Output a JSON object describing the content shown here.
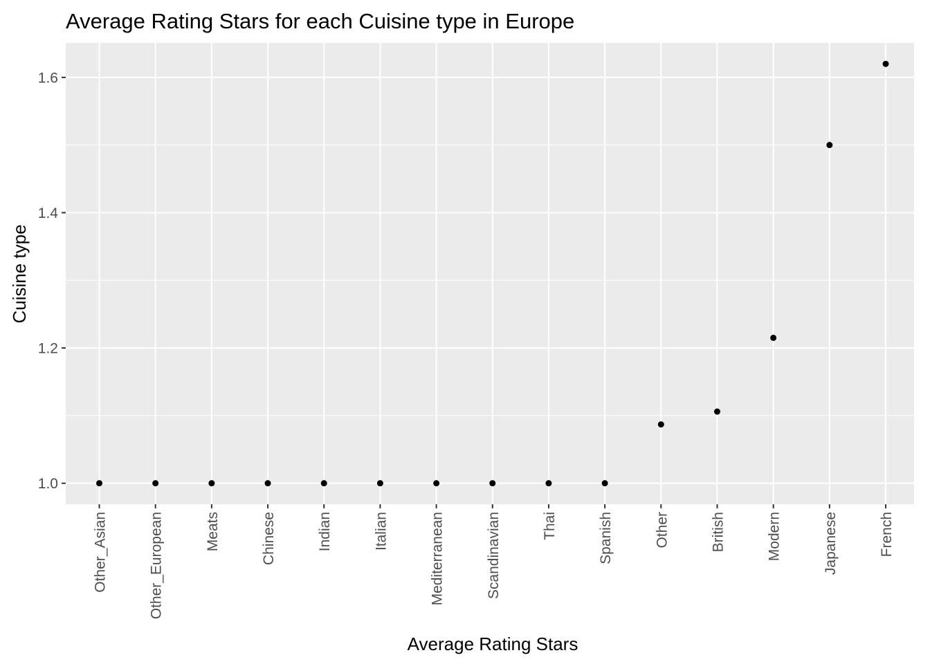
{
  "chart_data": {
    "type": "scatter",
    "title": "Average Rating Stars for each Cuisine type in Europe",
    "xlabel": "Average Rating Stars",
    "ylabel": "Cuisine type",
    "categories": [
      "Other_Asian",
      "Other_European",
      "Meats",
      "Chinese",
      "Indian",
      "Italian",
      "Mediterranean",
      "Scandinavian",
      "Thai",
      "Spanish",
      "Other",
      "British",
      "Modern",
      "Japanese",
      "French"
    ],
    "values": [
      1.0,
      1.0,
      1.0,
      1.0,
      1.0,
      1.0,
      1.0,
      1.0,
      1.0,
      1.0,
      1.087,
      1.106,
      1.215,
      1.5,
      1.62
    ],
    "ylim": [
      0.969,
      1.651
    ],
    "y_ticks": [
      "1.0",
      "1.2",
      "1.4",
      "1.6"
    ],
    "grid": true,
    "colors": {
      "panel_background": "#ebebeb",
      "grid_line": "#ffffff",
      "point": "#000000",
      "tick_label": "#4d4d4d",
      "tick_mark": "#333333"
    }
  }
}
